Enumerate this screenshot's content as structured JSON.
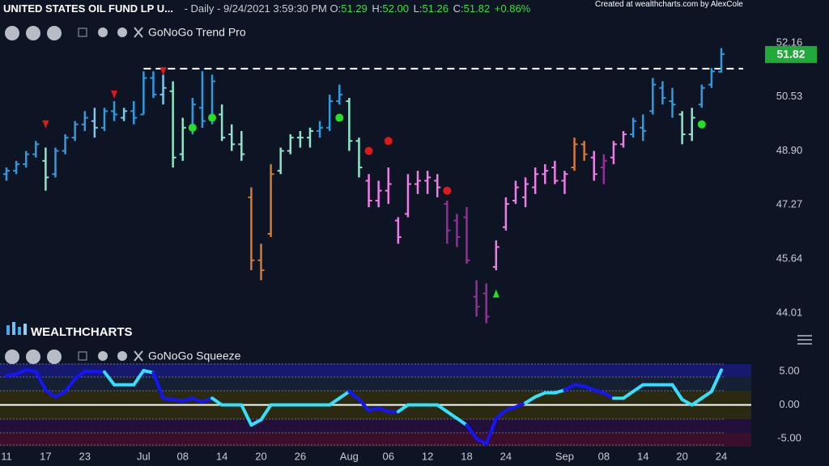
{
  "header": {
    "symbol": "UNITED STATES OIL FUND LP U...",
    "info": "- Daily - 9/24/2021 3:59:30 PM",
    "o_label": "O:",
    "o": "51.29",
    "h_label": "H:",
    "h": "52.00",
    "l_label": "L:",
    "l": "51.26",
    "c_label": "C:",
    "c": "51.82",
    "change": "+0.86%",
    "credit": "Created at wealthcharts.com by AlexCole"
  },
  "brand": "WEALTHCHARTS",
  "chart_data": [
    {
      "type": "ohlc",
      "title": "GoNoGo Trend Pro",
      "categories": [
        "11",
        null,
        null,
        null,
        "17",
        null,
        null,
        null,
        "23",
        null,
        null,
        null,
        null,
        null,
        "Jul",
        null,
        null,
        null,
        "08",
        null,
        null,
        null,
        "14",
        null,
        null,
        null,
        "20",
        null,
        null,
        null,
        "26",
        null,
        null,
        null,
        null,
        "Aug",
        null,
        null,
        null,
        "06",
        null,
        null,
        null,
        "12",
        null,
        null,
        null,
        "18",
        null,
        null,
        null,
        "24",
        null,
        null,
        null,
        null,
        null,
        "Sep",
        null,
        null,
        null,
        "08",
        null,
        null,
        null,
        "14",
        null,
        null,
        null,
        "20",
        null,
        null,
        null,
        "24"
      ],
      "open": [
        48.2,
        48.3,
        48.5,
        48.8,
        48.6,
        48.2,
        48.9,
        49.3,
        49.7,
        49.8,
        49.6,
        50.1,
        49.9,
        50.1,
        50.0,
        51.1,
        50.6,
        50.7,
        48.8,
        49.6,
        50.2,
        49.9,
        50.0,
        49.4,
        49.1,
        47.5,
        45.6,
        46.4,
        48.3,
        48.9,
        49.3,
        49.3,
        49.5,
        49.6,
        50.4,
        50.4,
        49.2,
        48.0,
        47.4,
        47.7,
        46.8,
        47.0,
        47.9,
        48.0,
        48.0,
        47.3,
        46.8,
        46.9,
        44.5,
        44.6,
        45.4,
        46.6,
        47.4,
        47.5,
        47.8,
        48.2,
        48.4,
        48.0,
        48.4,
        49.1,
        48.7,
        48.4,
        48.7,
        49.1,
        49.4,
        49.6,
        50.1,
        50.8,
        50.4,
        50.0,
        49.4,
        50.3,
        50.9,
        51.29
      ],
      "high": [
        48.4,
        48.6,
        48.9,
        49.2,
        49.0,
        49.0,
        49.4,
        49.8,
        50.1,
        50.2,
        50.2,
        50.4,
        50.2,
        50.4,
        51.3,
        51.3,
        51.2,
        51.0,
        49.9,
        50.5,
        51.3,
        51.2,
        50.3,
        49.7,
        49.5,
        47.8,
        46.1,
        48.5,
        49.0,
        49.4,
        49.5,
        49.6,
        49.8,
        50.6,
        50.9,
        50.5,
        49.3,
        48.2,
        48.0,
        48.4,
        46.9,
        48.2,
        48.3,
        48.3,
        48.2,
        47.4,
        47.0,
        47.2,
        45.0,
        44.9,
        46.2,
        47.5,
        48.0,
        48.1,
        48.4,
        48.5,
        48.6,
        48.3,
        49.3,
        49.2,
        48.9,
        48.8,
        49.2,
        49.5,
        49.9,
        50.0,
        51.1,
        51.0,
        50.8,
        50.1,
        50.2,
        50.9,
        51.4,
        52
      ],
      "low": [
        48.0,
        48.2,
        48.4,
        48.7,
        47.7,
        48.1,
        48.8,
        49.2,
        49.5,
        49.3,
        49.5,
        49.8,
        49.8,
        49.7,
        50.0,
        50.5,
        50.3,
        48.4,
        48.6,
        49.4,
        49.6,
        49.7,
        49.2,
        48.9,
        48.6,
        45.3,
        45.0,
        46.3,
        48.2,
        48.8,
        49.0,
        49.0,
        49.3,
        49.5,
        50.3,
        48.9,
        48.1,
        47.2,
        47.2,
        47.3,
        46.1,
        46.9,
        47.6,
        47.6,
        47.5,
        46.1,
        46.0,
        45.5,
        43.9,
        43.7,
        45.3,
        46.5,
        47.3,
        47.2,
        47.6,
        47.9,
        47.9,
        47.6,
        48.3,
        48.6,
        48.0,
        47.9,
        48.5,
        49.0,
        49.3,
        49.2,
        50.0,
        50.3,
        49.9,
        49.1,
        49.2,
        50.2,
        50.8,
        51.26
      ],
      "close": [
        48.3,
        48.5,
        48.8,
        49.1,
        48.1,
        48.9,
        49.3,
        49.7,
        49.9,
        49.6,
        50.1,
        50.0,
        50.1,
        49.9,
        51.1,
        50.6,
        50.8,
        48.7,
        49.6,
        50.3,
        49.8,
        51.0,
        49.3,
        49.1,
        48.8,
        45.6,
        45.3,
        48.2,
        48.9,
        49.3,
        49.3,
        49.5,
        49.6,
        50.4,
        50.6,
        49.2,
        48.4,
        47.4,
        47.7,
        47.9,
        46.3,
        47.9,
        48.0,
        48.1,
        47.8,
        46.5,
        46.3,
        45.6,
        44.2,
        43.9,
        46.0,
        47.3,
        47.8,
        47.9,
        48.2,
        48.3,
        48.0,
        48.2,
        49.1,
        48.8,
        48.2,
        48.6,
        49.1,
        49.4,
        49.8,
        49.5,
        50.9,
        50.5,
        50.3,
        49.4,
        49.9,
        50.8,
        51.3,
        51.82
      ],
      "colors": [
        "#2e9be0",
        "#2e9be0",
        "#2e9be0",
        "#2e9be0",
        "#8ee6c8",
        "#2e9be0",
        "#2e9be0",
        "#2e9be0",
        "#2e9be0",
        "#7ec8ee",
        "#2e9be0",
        "#2e9be0",
        "#7ec8ee",
        "#2e9be0",
        "#2e9be0",
        "#2e9be0",
        "#7ec8ee",
        "#8ee6c8",
        "#8ee6c8",
        "#2e9be0",
        "#2e9be0",
        "#2e9be0",
        "#8ee6c8",
        "#8ee6c8",
        "#8ee6c8",
        "#d77a30",
        "#d77a30",
        "#d77a30",
        "#8ee6c8",
        "#8ee6c8",
        "#8ee6c8",
        "#8ee6c8",
        "#2e9be0",
        "#2e9be0",
        "#2e9be0",
        "#8ee6c8",
        "#8ee6c8",
        "#f07ce8",
        "#f07ce8",
        "#f07ce8",
        "#f07ce8",
        "#f07ce8",
        "#f07ce8",
        "#f07ce8",
        "#f07ce8",
        "#9b2a9b",
        "#9b2a9b",
        "#9b2a9b",
        "#9b2a9b",
        "#9b2a9b",
        "#f07ce8",
        "#f07ce8",
        "#f07ce8",
        "#f07ce8",
        "#f07ce8",
        "#f07ce8",
        "#f07ce8",
        "#f07ce8",
        "#d77a30",
        "#d77a30",
        "#f07ce8",
        "#9b2a9b",
        "#f07ce8",
        "#f07ce8",
        "#2e9be0",
        "#2e9be0",
        "#2e9be0",
        "#2e9be0",
        "#2e9be0",
        "#8ee6c8",
        "#8ee6c8",
        "#2e9be0",
        "#2e9be0",
        "#2e9be0"
      ],
      "signals": [
        {
          "shape": "triangle-down",
          "index": 4,
          "value": 49.7,
          "color": "#e01818"
        },
        {
          "shape": "triangle-down",
          "index": 11,
          "value": 50.6,
          "color": "#e01818"
        },
        {
          "shape": "triangle-down",
          "index": 16,
          "value": 51.3,
          "color": "#e01818"
        },
        {
          "shape": "circle",
          "index": 19,
          "value": 49.6,
          "color": "#22e022"
        },
        {
          "shape": "circle",
          "index": 21,
          "value": 49.9,
          "color": "#22e022"
        },
        {
          "shape": "circle",
          "index": 34,
          "value": 49.9,
          "color": "#22e022"
        },
        {
          "shape": "circle",
          "index": 71,
          "value": 49.7,
          "color": "#22e022"
        },
        {
          "shape": "circle",
          "index": 37,
          "value": 48.9,
          "color": "#e01818"
        },
        {
          "shape": "circle",
          "index": 39,
          "value": 49.2,
          "color": "#e01818"
        },
        {
          "shape": "circle",
          "index": 45,
          "value": 47.7,
          "color": "#e01818"
        },
        {
          "shape": "triangle-up",
          "index": 50,
          "value": 44.6,
          "color": "#22e022"
        }
      ],
      "resistance": {
        "value": 51.38,
        "from_index": 14
      },
      "last_price": {
        "value": 51.82,
        "label": "51.82",
        "color": "#1faa3a"
      },
      "ylim": [
        43.69,
        52.72
      ],
      "yticks": [
        {
          "value": 44.01,
          "label": "44.01"
        },
        {
          "value": 45.64,
          "label": "45.64"
        },
        {
          "value": 47.27,
          "label": "47.27"
        },
        {
          "value": 48.9,
          "label": "48.90"
        },
        {
          "value": 50.53,
          "label": "50.53"
        },
        {
          "value": 52.16,
          "label": "52.16"
        }
      ]
    },
    {
      "type": "line",
      "title": "GoNoGo Squeeze",
      "values": [
        4.3,
        4.6,
        5.2,
        5.0,
        2.2,
        1.2,
        2.0,
        3.9,
        5.0,
        5.0,
        4.9,
        3.0,
        3.0,
        3.0,
        5.1,
        4.8,
        1.0,
        0.8,
        0.6,
        1.0,
        0.4,
        1.0,
        0.0,
        0.0,
        0.0,
        -3.0,
        -2.2,
        0.0,
        0.0,
        0.0,
        0.0,
        0.0,
        0.0,
        0.0,
        1.0,
        2.0,
        0.8,
        -0.8,
        -0.5,
        -1.0,
        -1.0,
        0.0,
        0.0,
        0.0,
        0.0,
        -1.0,
        -2.0,
        -3.0,
        -5.0,
        -5.8,
        -2.0,
        -0.8,
        -0.3,
        0.3,
        1.2,
        1.8,
        1.8,
        2.2,
        3.0,
        2.8,
        2.2,
        1.8,
        1.0,
        1.0,
        2.0,
        3.0,
        3.0,
        3.0,
        3.0,
        0.8,
        0.0,
        1.0,
        2.0,
        5.2
      ],
      "colors": [
        "#1414ff",
        "#1414ff",
        "#1414ff",
        "#1414ff",
        "#1414ff",
        "#1414ff",
        "#1414ff",
        "#1414ff",
        "#1414ff",
        "#1414ff",
        "#1414ff",
        "#33e0ff",
        "#33e0ff",
        "#33e0ff",
        "#33e0ff",
        "#33e0ff",
        "#1414ff",
        "#1414ff",
        "#1414ff",
        "#1414ff",
        "#1414ff",
        "#1414ff",
        "#33e0ff",
        "#33e0ff",
        "#33e0ff",
        "#33e0ff",
        "#33e0ff",
        "#33e0ff",
        "#33e0ff",
        "#33e0ff",
        "#33e0ff",
        "#33e0ff",
        "#33e0ff",
        "#33e0ff",
        "#33e0ff",
        "#33e0ff",
        "#1414ff",
        "#1414ff",
        "#1414ff",
        "#1414ff",
        "#1414ff",
        "#33e0ff",
        "#33e0ff",
        "#33e0ff",
        "#33e0ff",
        "#33e0ff",
        "#33e0ff",
        "#33e0ff",
        "#1414ff",
        "#1414ff",
        "#1414ff",
        "#1414ff",
        "#1414ff",
        "#1414ff",
        "#33e0ff",
        "#33e0ff",
        "#33e0ff",
        "#33e0ff",
        "#1414ff",
        "#1414ff",
        "#1414ff",
        "#1414ff",
        "#1414ff",
        "#33e0ff",
        "#33e0ff",
        "#33e0ff",
        "#33e0ff",
        "#33e0ff",
        "#33e0ff",
        "#33e0ff",
        "#33e0ff",
        "#33e0ff",
        "#33e0ff",
        "#33e0ff"
      ],
      "zero_line": 0,
      "ylim": [
        -6.2,
        6.08
      ],
      "yticks": [
        {
          "value": 5,
          "label": "5.00"
        },
        {
          "value": 0,
          "label": "0.00"
        },
        {
          "value": -5,
          "label": "-5.00"
        }
      ]
    }
  ]
}
